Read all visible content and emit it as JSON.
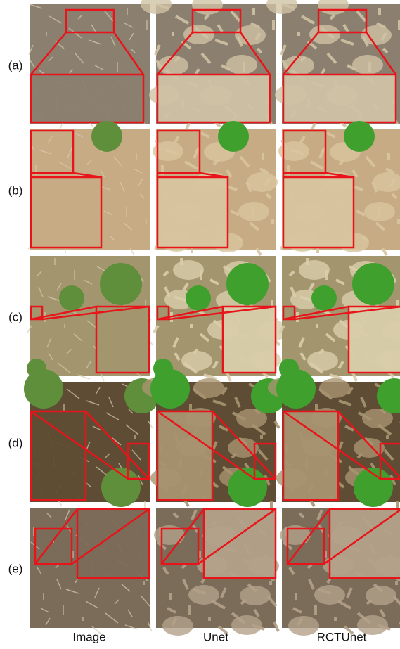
{
  "row_labels": [
    "(a)",
    "(b)",
    "(c)",
    "(d)",
    "(e)"
  ],
  "column_labels": [
    "Image",
    "Unet",
    "RCTUnet"
  ]
}
